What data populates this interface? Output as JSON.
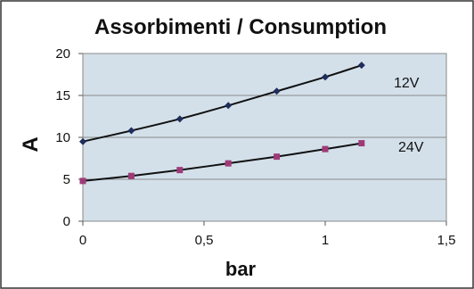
{
  "chart_data": {
    "type": "line",
    "title": "Assorbimenti / Consumption",
    "xlabel": "bar",
    "ylabel": "A",
    "xlim": [
      0,
      1.5
    ],
    "ylim": [
      0,
      20
    ],
    "x_ticks": [
      "0",
      "0,5",
      "1",
      "1,5"
    ],
    "y_ticks": [
      "0",
      "5",
      "10",
      "15",
      "20"
    ],
    "grid": "horizontal",
    "plot_background": "#d3e0ea",
    "series": [
      {
        "name": "12V",
        "color": "#1f2d5c",
        "marker": "diamond",
        "x": [
          0,
          0.2,
          0.4,
          0.6,
          0.8,
          1.0,
          1.15
        ],
        "y": [
          9.5,
          10.8,
          12.2,
          13.8,
          15.5,
          17.2,
          18.6
        ]
      },
      {
        "name": "24V",
        "color": "#9e3a78",
        "marker": "square",
        "x": [
          0,
          0.2,
          0.4,
          0.6,
          0.8,
          1.0,
          1.15
        ],
        "y": [
          4.8,
          5.4,
          6.1,
          6.9,
          7.7,
          8.6,
          9.3
        ]
      }
    ]
  }
}
